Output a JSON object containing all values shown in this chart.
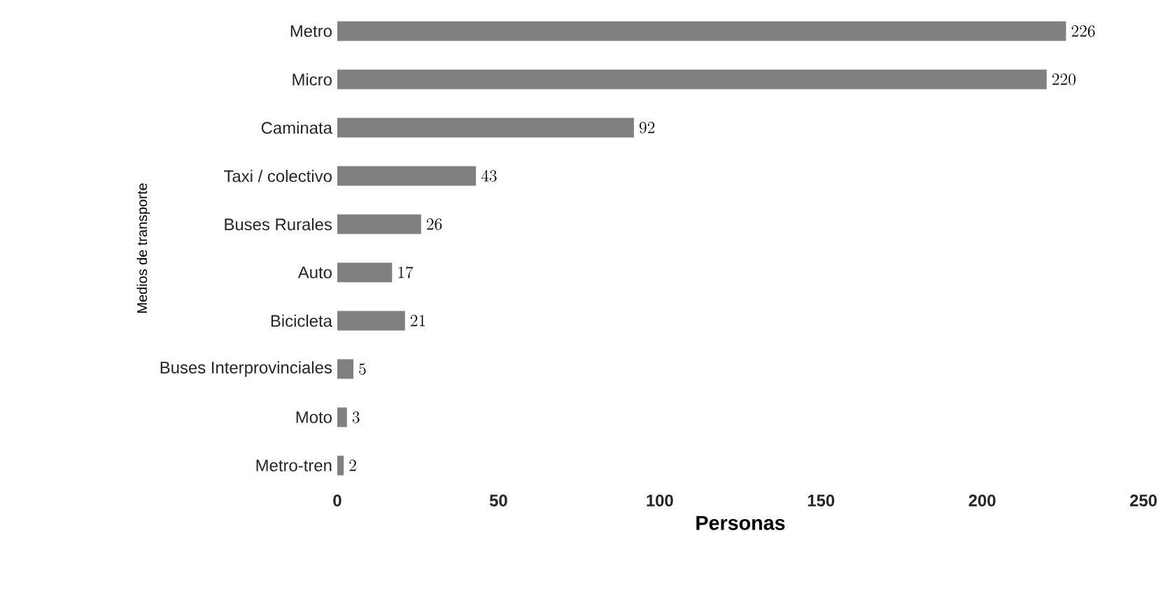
{
  "chart_data": {
    "type": "bar",
    "orientation": "horizontal",
    "xlabel": "Personas",
    "ylabel": "Medios de transporte",
    "categories": [
      "Metro",
      "Micro",
      "Caminata",
      "Taxi / colectivo",
      "Buses Rurales",
      "Auto",
      "Bicicleta",
      "Buses Interprovinciales",
      "Moto",
      "Metro-tren"
    ],
    "values": [
      226,
      220,
      92,
      43,
      26,
      17,
      21,
      5,
      3,
      2
    ],
    "color": "#808080",
    "xlim": [
      0,
      250
    ],
    "xticks": [
      0,
      50,
      100,
      150,
      200,
      250
    ],
    "data_labels": true
  }
}
